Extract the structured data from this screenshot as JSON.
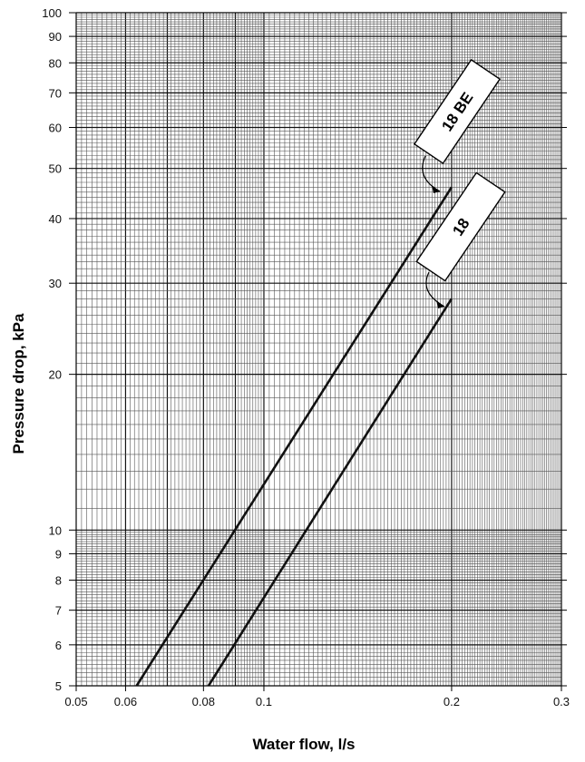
{
  "chart_data": {
    "type": "line",
    "title": "",
    "xlabel": "Water flow, l/s",
    "ylabel": "Pressure drop, kPa",
    "x_scale": "log",
    "y_scale": "log",
    "xlim": [
      0.05,
      0.3
    ],
    "ylim": [
      5,
      100
    ],
    "grid": true,
    "x_ticks": [
      {
        "value": 0.05,
        "label": "0.05"
      },
      {
        "value": 0.06,
        "label": "0.06"
      },
      {
        "value": 0.08,
        "label": "0.08"
      },
      {
        "value": 0.1,
        "label": "0.1"
      },
      {
        "value": 0.2,
        "label": "0.2"
      },
      {
        "value": 0.3,
        "label": "0.3"
      }
    ],
    "y_ticks": [
      {
        "value": 5,
        "label": "5"
      },
      {
        "value": 6,
        "label": "6"
      },
      {
        "value": 7,
        "label": "7"
      },
      {
        "value": 8,
        "label": "8"
      },
      {
        "value": 9,
        "label": "9"
      },
      {
        "value": 10,
        "label": "10"
      },
      {
        "value": 20,
        "label": "20"
      },
      {
        "value": 30,
        "label": "30"
      },
      {
        "value": 40,
        "label": "40"
      },
      {
        "value": 50,
        "label": "50"
      },
      {
        "value": 60,
        "label": "60"
      },
      {
        "value": 70,
        "label": "70"
      },
      {
        "value": 80,
        "label": "80"
      },
      {
        "value": 90,
        "label": "90"
      },
      {
        "value": 100,
        "label": "100"
      }
    ],
    "series": [
      {
        "name": "18 BE",
        "x": [
          0.0625,
          0.2
        ],
        "y": [
          5,
          46
        ],
        "color": "#111111"
      },
      {
        "name": "18",
        "x": [
          0.0815,
          0.2
        ],
        "y": [
          5,
          28
        ],
        "color": "#111111"
      }
    ]
  }
}
